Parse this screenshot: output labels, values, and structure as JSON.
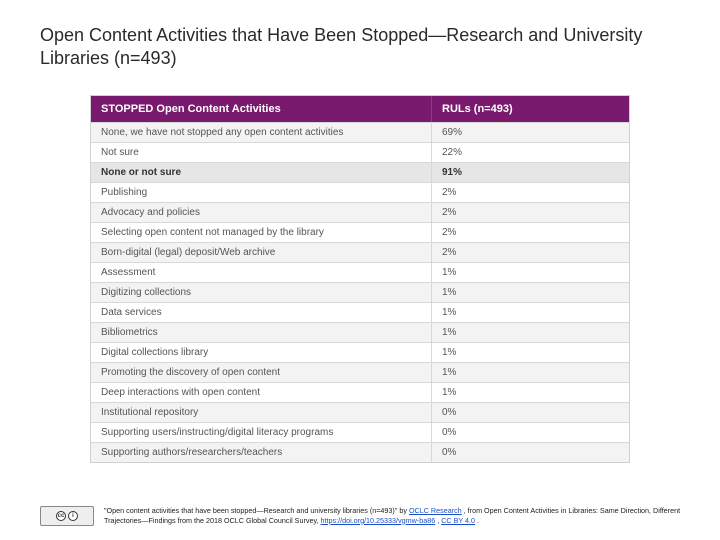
{
  "title": "Open Content Activities that Have Been Stopped—Research and University Libraries (n=493)",
  "table": {
    "header_bg": "#7a1a6e",
    "header_fg": "#ffffff",
    "row_alt_bg": "#f3f3f3",
    "border_color": "#d8d8d8",
    "columns": [
      "STOPPED Open Content Activities",
      "RULs (n=493)"
    ],
    "rows": [
      {
        "label": "None, we have not stopped any open content activities",
        "value": "69%",
        "alt": true
      },
      {
        "label": "Not sure",
        "value": "22%",
        "alt": false
      },
      {
        "label": "None or not sure",
        "value": "91%",
        "bold": true
      },
      {
        "label": "Publishing",
        "value": "2%",
        "alt": false
      },
      {
        "label": "Advocacy and policies",
        "value": "2%",
        "alt": true
      },
      {
        "label": "Selecting open content not managed by the library",
        "value": "2%",
        "alt": false
      },
      {
        "label": "Born-digital (legal) deposit/Web archive",
        "value": "2%",
        "alt": true
      },
      {
        "label": "Assessment",
        "value": "1%",
        "alt": false
      },
      {
        "label": "Digitizing collections",
        "value": "1%",
        "alt": true
      },
      {
        "label": "Data services",
        "value": "1%",
        "alt": false
      },
      {
        "label": "Bibliometrics",
        "value": "1%",
        "alt": true
      },
      {
        "label": "Digital collections library",
        "value": "1%",
        "alt": false
      },
      {
        "label": "Promoting the discovery of open content",
        "value": "1%",
        "alt": true
      },
      {
        "label": "Deep interactions with open content",
        "value": "1%",
        "alt": false
      },
      {
        "label": "Institutional repository",
        "value": "0%",
        "alt": true
      },
      {
        "label": "Supporting users/instructing/digital literacy programs",
        "value": "0%",
        "alt": false
      },
      {
        "label": "Supporting authors/researchers/teachers",
        "value": "0%",
        "alt": true
      }
    ]
  },
  "attribution": {
    "pre": "\"Open content activities that have been stopped—Research and university libraries (n=493)\" by ",
    "link1_text": "OCLC Research",
    "mid1": ", from Open Content Activities in Libraries: Same Direction, Different Trajectories—Findings from the 2018 OCLC Global Council Survey, ",
    "link2_text": "https://doi.org/10.25333/vgmw-ba86",
    "mid2": ", ",
    "link3_text": "CC BY 4.0",
    "post": "."
  },
  "cc": {
    "c1": "cc",
    "c2": "i",
    "sub": "BY"
  }
}
